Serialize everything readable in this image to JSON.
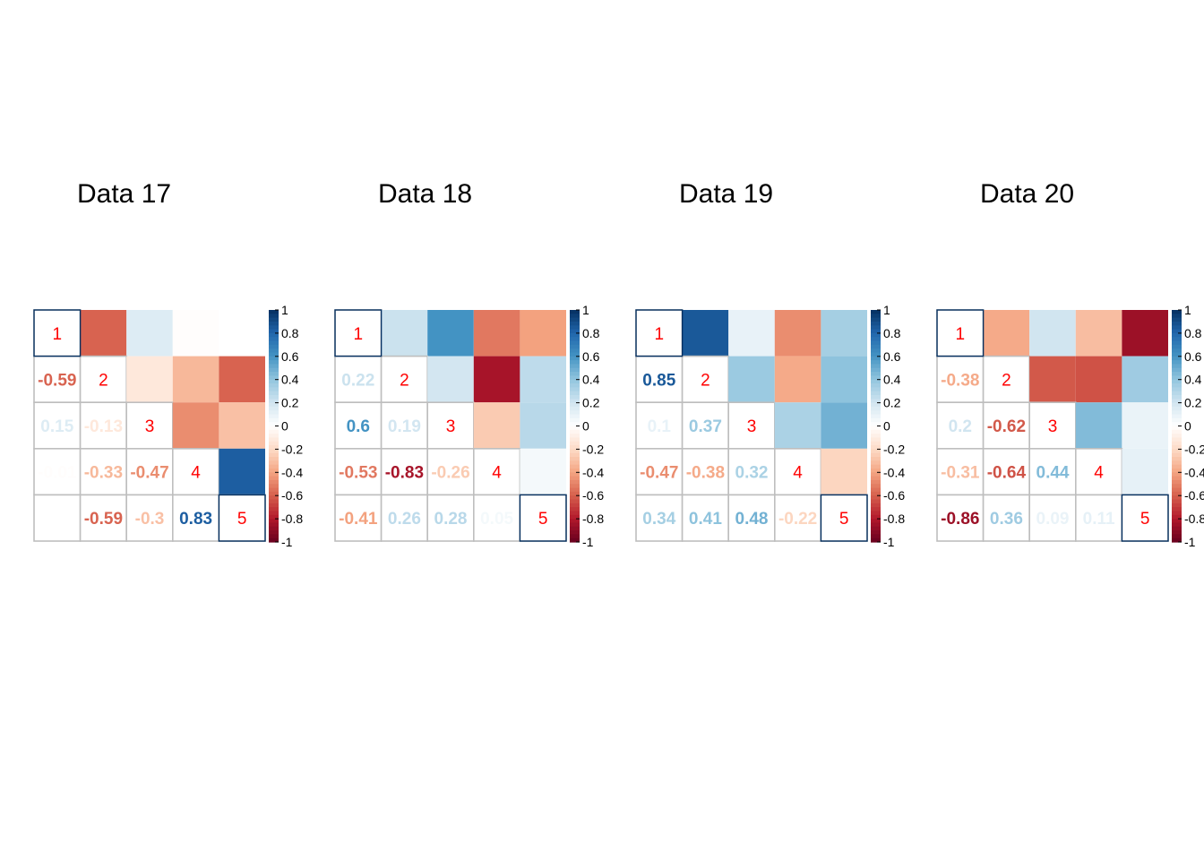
{
  "chart_data": [
    {
      "type": "heatmap",
      "title": "Data 17",
      "variables": [
        "1",
        "2",
        "3",
        "4",
        "5"
      ],
      "lower_values": [
        [
          -0.59
        ],
        [
          0.15,
          -0.13
        ],
        [
          -0.01,
          -0.33,
          -0.47
        ],
        [
          0.0,
          -0.59,
          -0.3,
          0.83
        ]
      ],
      "lower_labels": [
        [
          "-0.59"
        ],
        [
          "0.15",
          "-0.13"
        ],
        [
          "-0.01",
          "-0.33",
          "-0.47"
        ],
        [
          "0",
          "-0.59",
          "-0.3",
          "0.83"
        ]
      ],
      "color_range": [
        -1,
        1
      ]
    },
    {
      "type": "heatmap",
      "title": "Data 18",
      "variables": [
        "1",
        "2",
        "3",
        "4",
        "5"
      ],
      "lower_values": [
        [
          0.22
        ],
        [
          0.6,
          0.19
        ],
        [
          -0.53,
          -0.83,
          -0.26
        ],
        [
          -0.41,
          0.26,
          0.28,
          0.05
        ]
      ],
      "lower_labels": [
        [
          "0.22"
        ],
        [
          "0.6",
          "0.19"
        ],
        [
          "-0.53",
          "-0.83",
          "-0.26"
        ],
        [
          "-0.41",
          "0.26",
          "0.28",
          "0.05"
        ]
      ],
      "color_range": [
        -1,
        1
      ]
    },
    {
      "type": "heatmap",
      "title": "Data 19",
      "variables": [
        "1",
        "2",
        "3",
        "4",
        "5"
      ],
      "lower_values": [
        [
          0.85
        ],
        [
          0.1,
          0.37
        ],
        [
          -0.47,
          -0.38,
          0.32
        ],
        [
          0.34,
          0.41,
          0.48,
          -0.22
        ]
      ],
      "lower_labels": [
        [
          "0.85"
        ],
        [
          "0.1",
          "0.37"
        ],
        [
          "-0.47",
          "-0.38",
          "0.32"
        ],
        [
          "0.34",
          "0.41",
          "0.48",
          "-0.22"
        ]
      ],
      "color_range": [
        -1,
        1
      ]
    },
    {
      "type": "heatmap",
      "title": "Data 20",
      "variables": [
        "1",
        "2",
        "3",
        "4",
        "5"
      ],
      "lower_values": [
        [
          -0.38
        ],
        [
          0.2,
          -0.62
        ],
        [
          -0.31,
          -0.64,
          0.44
        ],
        [
          -0.86,
          0.36,
          0.09,
          0.11
        ]
      ],
      "lower_labels": [
        [
          "-0.38"
        ],
        [
          "0.2",
          "-0.62"
        ],
        [
          "-0.31",
          "-0.64",
          "0.44"
        ],
        [
          "-0.86",
          "0.36",
          "0.09",
          "0.11"
        ]
      ],
      "color_range": [
        -1,
        1
      ]
    }
  ],
  "colorbar_ticks": [
    "1",
    "0.8",
    "0.6",
    "0.4",
    "0.2",
    "0",
    "-0.2",
    "-0.4",
    "-0.6",
    "-0.8",
    "-1"
  ],
  "colorbar_tick_values": [
    1,
    0.8,
    0.6,
    0.4,
    0.2,
    0,
    -0.2,
    -0.4,
    -0.6,
    -0.8,
    -1
  ],
  "colors": {
    "diagonal_text": "#ff0000",
    "grid": "#bebebe",
    "outline": "#053061"
  },
  "palette": [
    "#67001f",
    "#b2182b",
    "#d6604d",
    "#f4a582",
    "#fddbc7",
    "#ffffff",
    "#d1e5f0",
    "#92c5de",
    "#4393c3",
    "#2166ac",
    "#053061"
  ]
}
